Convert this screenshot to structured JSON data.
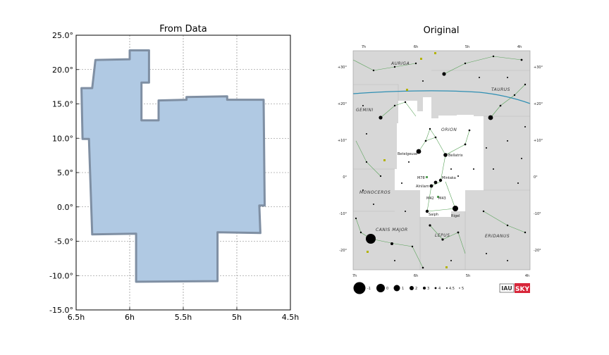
{
  "chart_data": [
    {
      "type": "polygon",
      "title": "From Data",
      "xlabel": "",
      "ylabel": "",
      "xlim": [
        6.5,
        4.5
      ],
      "ylim": [
        -15,
        25
      ],
      "x_ticks": [
        {
          "value": 6.5,
          "label": "6.5h"
        },
        {
          "value": 6.0,
          "label": "6h"
        },
        {
          "value": 5.5,
          "label": "5.5h"
        },
        {
          "value": 5.0,
          "label": "5h"
        },
        {
          "value": 4.5,
          "label": "4.5h"
        }
      ],
      "y_ticks": [
        {
          "value": 25,
          "label": "25.0°"
        },
        {
          "value": 20,
          "label": "20.0°"
        },
        {
          "value": 15,
          "label": "15.0°"
        },
        {
          "value": 10,
          "label": "10.0°"
        },
        {
          "value": 5,
          "label": "5.0°"
        },
        {
          "value": 0,
          "label": "0.0°"
        },
        {
          "value": -5,
          "label": "-5.0°"
        },
        {
          "value": -10,
          "label": "-10.0°"
        },
        {
          "value": -15,
          "label": "-15.0°"
        }
      ],
      "grid": true,
      "fill_color": "#b0c9e3",
      "edge_color": "#7f8fa3",
      "points": [
        [
          6.32,
          21.4
        ],
        [
          6.0,
          21.5
        ],
        [
          6.0,
          22.8
        ],
        [
          5.82,
          22.8
        ],
        [
          5.82,
          18.1
        ],
        [
          5.89,
          18.1
        ],
        [
          5.89,
          12.6
        ],
        [
          5.73,
          12.6
        ],
        [
          5.73,
          15.5
        ],
        [
          5.47,
          15.6
        ],
        [
          5.47,
          16.0
        ],
        [
          5.09,
          16.1
        ],
        [
          5.09,
          15.6
        ],
        [
          4.75,
          15.6
        ],
        [
          4.74,
          0.2
        ],
        [
          4.79,
          0.2
        ],
        [
          4.78,
          -3.8
        ],
        [
          5.18,
          -3.7
        ],
        [
          5.18,
          -10.8
        ],
        [
          5.94,
          -10.9
        ],
        [
          5.94,
          -3.9
        ],
        [
          6.35,
          -4.0
        ],
        [
          6.38,
          9.9
        ],
        [
          6.44,
          9.9
        ],
        [
          6.45,
          17.3
        ],
        [
          6.35,
          17.3
        ]
      ]
    },
    {
      "type": "image",
      "title": "Original",
      "top_ra_labels": [
        "7h",
        "6h",
        "5h",
        "4h"
      ],
      "bottom_ra_labels": [
        "7h",
        "6h",
        "5h",
        "4h"
      ],
      "dec_labels": [
        "+30°",
        "+20°",
        "+10°",
        "0°",
        "-10°",
        "-20°"
      ],
      "constellation_labels": [
        "AURIGA",
        "TAURUS",
        "GEMINI",
        "ORION",
        "MONOCEROS",
        "CANIS MAJOR",
        "LEPUS",
        "ERIDANUS"
      ],
      "star_labels": [
        "Betelgeuse",
        "Bellatrix",
        "Mintaka",
        "Alnilam",
        "Saiph",
        "Rigel",
        "M78",
        "M42",
        "M43"
      ],
      "magnitude_scale": [
        "-1",
        "0",
        "1",
        "2",
        "3",
        "4",
        "4.5",
        "5"
      ],
      "logos": [
        "IAU",
        "SKY"
      ],
      "background_color": "#d7d7d7",
      "orion_area_color": "#ffffff",
      "ecliptic_color": "#2f8fb3",
      "line_color": "#5aa35a"
    }
  ]
}
